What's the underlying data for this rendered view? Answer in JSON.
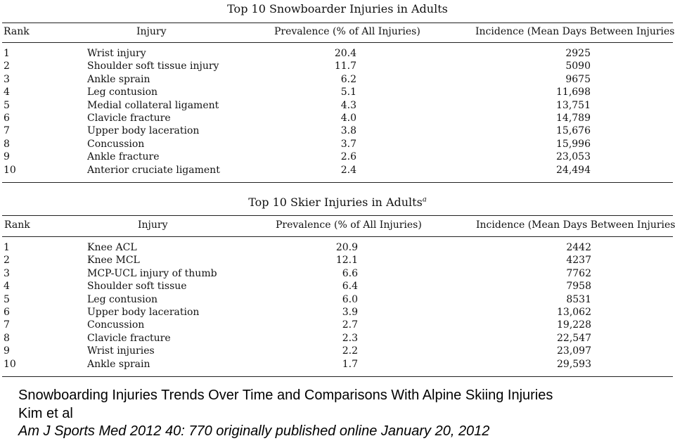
{
  "tables": [
    {
      "title": "Top 10 Snowboarder Injuries in Adults",
      "title_sup": "",
      "headers": {
        "rank": "Rank",
        "injury": "Injury",
        "prevalence": "Prevalence (% of All Injuries)",
        "incidence": "Incidence (Mean Days Between Injuries)"
      },
      "rows": [
        {
          "rank": "1",
          "injury": "Wrist injury",
          "prevalence": "20.4",
          "incidence": "2925"
        },
        {
          "rank": "2",
          "injury": "Shoulder soft tissue injury",
          "prevalence": "11.7",
          "incidence": "5090"
        },
        {
          "rank": "3",
          "injury": "Ankle sprain",
          "prevalence": "6.2",
          "incidence": "9675"
        },
        {
          "rank": "4",
          "injury": "Leg contusion",
          "prevalence": "5.1",
          "incidence": "11,698"
        },
        {
          "rank": "5",
          "injury": "Medial collateral ligament",
          "prevalence": "4.3",
          "incidence": "13,751"
        },
        {
          "rank": "6",
          "injury": "Clavicle fracture",
          "prevalence": "4.0",
          "incidence": "14,789"
        },
        {
          "rank": "7",
          "injury": "Upper body laceration",
          "prevalence": "3.8",
          "incidence": "15,676"
        },
        {
          "rank": "8",
          "injury": "Concussion",
          "prevalence": "3.7",
          "incidence": "15,996"
        },
        {
          "rank": "9",
          "injury": "Ankle fracture",
          "prevalence": "2.6",
          "incidence": "23,053"
        },
        {
          "rank": "10",
          "injury": "Anterior cruciate ligament",
          "prevalence": "2.4",
          "incidence": "24,494"
        }
      ]
    },
    {
      "title": "Top 10 Skier Injuries in Adults",
      "title_sup": "a",
      "headers": {
        "rank": "Rank",
        "injury": "Injury",
        "prevalence": "Prevalence (% of All Injuries)",
        "incidence": "Incidence (Mean Days Between Injuries)"
      },
      "rows": [
        {
          "rank": "1",
          "injury": "Knee ACL",
          "prevalence": "20.9",
          "incidence": "2442"
        },
        {
          "rank": "2",
          "injury": "Knee MCL",
          "prevalence": "12.1",
          "incidence": "4237"
        },
        {
          "rank": "3",
          "injury": "MCP-UCL injury of thumb",
          "prevalence": "6.6",
          "incidence": "7762"
        },
        {
          "rank": "4",
          "injury": "Shoulder soft tissue",
          "prevalence": "6.4",
          "incidence": "7958"
        },
        {
          "rank": "5",
          "injury": "Leg contusion",
          "prevalence": "6.0",
          "incidence": "8531"
        },
        {
          "rank": "6",
          "injury": "Upper body laceration",
          "prevalence": "3.9",
          "incidence": "13,062"
        },
        {
          "rank": "7",
          "injury": "Concussion",
          "prevalence": "2.7",
          "incidence": "19,228"
        },
        {
          "rank": "8",
          "injury": "Clavicle fracture",
          "prevalence": "2.3",
          "incidence": "22,547"
        },
        {
          "rank": "9",
          "injury": "Wrist injuries",
          "prevalence": "2.2",
          "incidence": "23,097"
        },
        {
          "rank": "10",
          "injury": "Ankle sprain",
          "prevalence": "1.7",
          "incidence": "29,593"
        }
      ]
    }
  ],
  "caption": {
    "line1": "Snowboarding Injuries Trends Over Time and Comparisons With Alpine Skiing Injuries",
    "line2": "Kim et al",
    "line3": "Am J Sports Med 2012 40: 770 originally published online January 20, 2012"
  }
}
